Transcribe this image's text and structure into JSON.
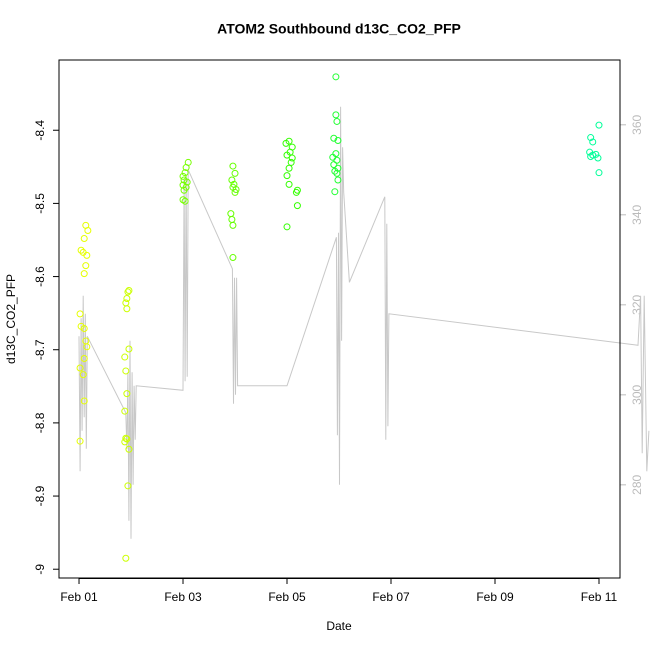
{
  "chart_data": {
    "type": "scatter",
    "title": "ATOM2 Southbound d13C_CO2_PFP",
    "x_label": "Date",
    "y_label": "d13C_CO2_PFP",
    "xlim": [
      -0.385,
      10.404
    ],
    "xticks": [
      {
        "value": 0,
        "label": "Feb 01"
      },
      {
        "value": 2,
        "label": "Feb 03"
      },
      {
        "value": 4,
        "label": "Feb 05"
      },
      {
        "value": 6,
        "label": "Feb 07"
      },
      {
        "value": 8,
        "label": "Feb 09"
      },
      {
        "value": 10,
        "label": "Feb 11"
      }
    ],
    "ylim": [
      -9.012,
      -8.304
    ],
    "yticks": [
      -9.0,
      -8.9,
      -8.8,
      -8.7,
      -8.6,
      -8.5,
      -8.4
    ],
    "y2lim": [
      259.3,
      374.4
    ],
    "y2ticks": [
      280,
      300,
      320,
      340,
      360
    ],
    "y2_color": "#bbbbbb",
    "series": [
      {
        "color": "#e6ff00",
        "x": [
          0.13,
          0.17,
          0.1,
          0.04,
          0.08,
          0.15,
          0.13,
          0.1,
          0.02,
          0.04,
          0.1,
          0.13,
          0.1,
          0.02,
          0.08,
          0.1,
          0.02,
          0.15
        ],
        "values": [
          -8.53,
          -8.537,
          -8.548,
          -8.564,
          -8.567,
          -8.571,
          -8.585,
          -8.596,
          -8.651,
          -8.668,
          -8.671,
          -8.688,
          -8.712,
          -8.725,
          -8.734,
          -8.77,
          -8.825,
          -8.696
        ]
      },
      {
        "color": "#ccff00",
        "x": [
          0.96,
          0.94,
          0.92,
          0.9,
          0.92,
          0.96,
          0.88,
          0.9,
          0.92,
          0.88,
          0.9,
          0.92,
          0.88,
          0.96,
          0.94,
          0.9
        ],
        "values": [
          -8.619,
          -8.621,
          -8.63,
          -8.636,
          -8.644,
          -8.699,
          -8.71,
          -8.729,
          -8.76,
          -8.784,
          -8.821,
          -8.822,
          -8.826,
          -8.836,
          -8.886,
          -8.985
        ]
      },
      {
        "color": "#77ff00",
        "x": [
          2.1,
          2.06,
          2.04,
          2.0,
          2.02,
          2.08,
          2.0,
          2.06,
          2.02,
          2.0,
          2.04
        ],
        "values": [
          -8.444,
          -8.451,
          -8.458,
          -8.463,
          -8.468,
          -8.471,
          -8.475,
          -8.478,
          -8.482,
          -8.495,
          -8.497
        ]
      },
      {
        "color": "#66ff00",
        "x": [
          2.96,
          3.0,
          2.94,
          2.98,
          2.96,
          3.02,
          3.0,
          2.92,
          2.94,
          2.96,
          2.96
        ],
        "values": [
          -8.449,
          -8.459,
          -8.468,
          -8.474,
          -8.478,
          -8.481,
          -8.485,
          -8.514,
          -8.522,
          -8.53,
          -8.574
        ]
      },
      {
        "color": "#33ff00",
        "x": [
          4.04,
          3.98,
          4.1,
          4.06,
          4.0,
          4.1,
          4.08,
          4.04,
          4.0,
          4.04,
          4.2,
          4.18,
          4.2,
          4.0
        ],
        "values": [
          -8.415,
          -8.418,
          -8.423,
          -8.43,
          -8.434,
          -8.438,
          -8.444,
          -8.452,
          -8.462,
          -8.474,
          -8.482,
          -8.485,
          -8.503,
          -8.532
        ]
      },
      {
        "color": "#22ff33",
        "x": [
          4.94,
          4.94,
          4.96,
          4.9,
          4.98,
          4.94,
          4.88,
          4.96,
          4.9,
          4.98,
          4.92,
          4.96,
          4.98,
          4.92
        ],
        "values": [
          -8.327,
          -8.379,
          -8.388,
          -8.411,
          -8.414,
          -8.432,
          -8.437,
          -8.441,
          -8.447,
          -8.452,
          -8.456,
          -8.459,
          -8.468,
          -8.484
        ]
      },
      {
        "color": "#00ff99",
        "x": [
          10.0,
          9.84,
          9.88,
          9.82,
          9.94,
          9.88,
          9.84,
          9.98,
          10.0
        ],
        "values": [
          -8.393,
          -8.41,
          -8.416,
          -8.43,
          -8.433,
          -8.434,
          -8.436,
          -8.438,
          -8.458
        ]
      },
      {
        "type": "line",
        "axis": "y2",
        "color": "#c8c8c8",
        "x": [
          0.0,
          0.02,
          0.04,
          0.06,
          0.08,
          0.1,
          0.12,
          0.14,
          0.16,
          0.9,
          0.92,
          0.94,
          0.96,
          0.98,
          1.0,
          1.02,
          1.04,
          1.06,
          1.08,
          1.1,
          2.0,
          2.02,
          2.04,
          2.06,
          2.08,
          2.1,
          2.95,
          2.97,
          2.99,
          3.01,
          3.03,
          3.05,
          4.0,
          4.95,
          4.97,
          4.99,
          5.01,
          5.03,
          5.05,
          5.07,
          5.09,
          5.2,
          5.88,
          5.9,
          5.92,
          5.94,
          5.96,
          10.75,
          10.8,
          10.83,
          10.87,
          10.92,
          10.96
        ],
        "values": [
          313,
          283,
          317,
          292,
          322,
          295,
          318,
          288,
          313,
          296,
          288,
          305,
          272,
          312,
          268,
          305,
          280,
          302,
          290,
          302,
          301,
          348,
          303,
          349,
          304,
          350,
          328,
          298,
          326,
          300,
          326,
          302,
          302,
          335,
          291,
          336,
          280,
          364,
          312,
          355,
          345,
          325,
          344,
          290,
          338,
          293,
          318,
          311,
          322,
          287,
          322,
          283,
          292
        ]
      }
    ]
  }
}
